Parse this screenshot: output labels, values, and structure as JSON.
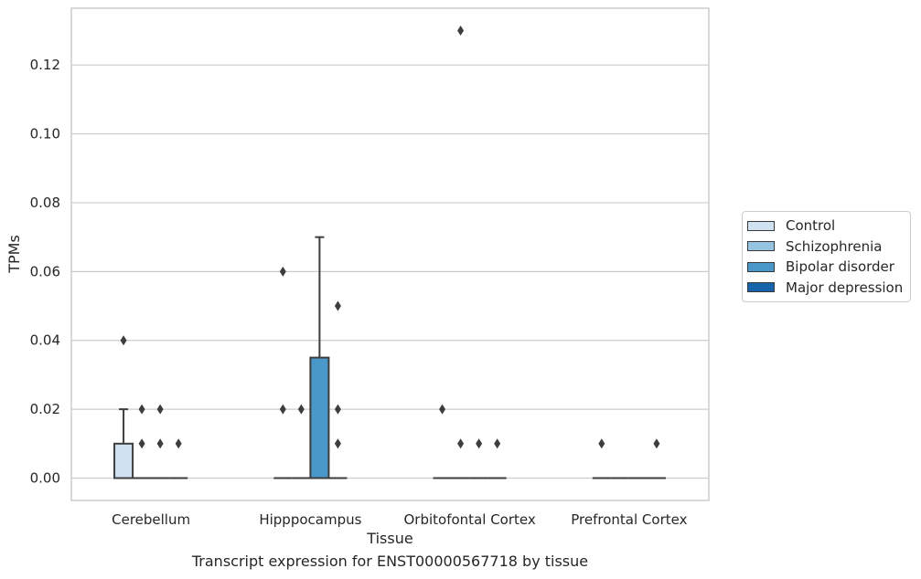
{
  "chart_data": {
    "type": "box",
    "title": "",
    "xlabel": "Tissue",
    "ylabel": "TPMs",
    "caption": "Transcript expression for ENST00000567718 by tissue",
    "ylim": [
      -0.0065,
      0.1365
    ],
    "yticks": [
      0.0,
      0.02,
      0.04,
      0.06,
      0.08,
      0.1,
      0.12
    ],
    "ytick_labels": [
      "0.00",
      "0.02",
      "0.04",
      "0.06",
      "0.08",
      "0.10",
      "0.12"
    ],
    "grid": true,
    "legend_placement": "center-right outside",
    "categories": [
      "Cerebellum",
      "Hipppocampus",
      "Orbitofontal Cortex",
      "Prefrontal Cortex"
    ],
    "series": [
      {
        "name": "Control",
        "color": "#d0e1f2",
        "boxes": [
          {
            "q1": 0.0,
            "median": 0.0,
            "q3": 0.01,
            "whisker_low": 0.0,
            "whisker_high": 0.02,
            "outliers": [
              0.04
            ]
          },
          {
            "q1": 0.0,
            "median": 0.0,
            "q3": 0.0,
            "whisker_low": 0.0,
            "whisker_high": 0.0,
            "outliers": [
              0.06,
              0.02
            ]
          },
          {
            "q1": 0.0,
            "median": 0.0,
            "q3": 0.0,
            "whisker_low": 0.0,
            "whisker_high": 0.0,
            "outliers": [
              0.02
            ]
          },
          {
            "q1": 0.0,
            "median": 0.0,
            "q3": 0.0,
            "whisker_low": 0.0,
            "whisker_high": 0.0,
            "outliers": [
              0.01
            ]
          }
        ]
      },
      {
        "name": "Schizophrenia",
        "color": "#94c4df",
        "boxes": [
          {
            "q1": 0.0,
            "median": 0.0,
            "q3": 0.0,
            "whisker_low": 0.0,
            "whisker_high": 0.0,
            "outliers": [
              0.02,
              0.01
            ]
          },
          {
            "q1": 0.0,
            "median": 0.0,
            "q3": 0.0,
            "whisker_low": 0.0,
            "whisker_high": 0.0,
            "outliers": [
              0.02
            ]
          },
          {
            "q1": 0.0,
            "median": 0.0,
            "q3": 0.0,
            "whisker_low": 0.0,
            "whisker_high": 0.0,
            "outliers": [
              0.13,
              0.01
            ]
          },
          {
            "q1": 0.0,
            "median": 0.0,
            "q3": 0.0,
            "whisker_low": 0.0,
            "whisker_high": 0.0,
            "outliers": []
          }
        ]
      },
      {
        "name": "Bipolar disorder",
        "color": "#4a98c9",
        "boxes": [
          {
            "q1": 0.0,
            "median": 0.0,
            "q3": 0.0,
            "whisker_low": 0.0,
            "whisker_high": 0.0,
            "outliers": [
              0.02,
              0.01
            ]
          },
          {
            "q1": 0.0,
            "median": 0.0,
            "q3": 0.035,
            "whisker_low": 0.0,
            "whisker_high": 0.07,
            "outliers": []
          },
          {
            "q1": 0.0,
            "median": 0.0,
            "q3": 0.0,
            "whisker_low": 0.0,
            "whisker_high": 0.0,
            "outliers": [
              0.01
            ]
          },
          {
            "q1": 0.0,
            "median": 0.0,
            "q3": 0.0,
            "whisker_low": 0.0,
            "whisker_high": 0.0,
            "outliers": []
          }
        ]
      },
      {
        "name": "Major depression",
        "color": "#1764ab",
        "boxes": [
          {
            "q1": 0.0,
            "median": 0.0,
            "q3": 0.0,
            "whisker_low": 0.0,
            "whisker_high": 0.0,
            "outliers": [
              0.01
            ]
          },
          {
            "q1": 0.0,
            "median": 0.0,
            "q3": 0.0,
            "whisker_low": 0.0,
            "whisker_high": 0.0,
            "outliers": [
              0.05,
              0.02,
              0.01
            ]
          },
          {
            "q1": 0.0,
            "median": 0.0,
            "q3": 0.0,
            "whisker_low": 0.0,
            "whisker_high": 0.0,
            "outliers": [
              0.01
            ]
          },
          {
            "q1": 0.0,
            "median": 0.0,
            "q3": 0.0,
            "whisker_low": 0.0,
            "whisker_high": 0.0,
            "outliers": [
              0.01
            ]
          }
        ]
      }
    ]
  }
}
